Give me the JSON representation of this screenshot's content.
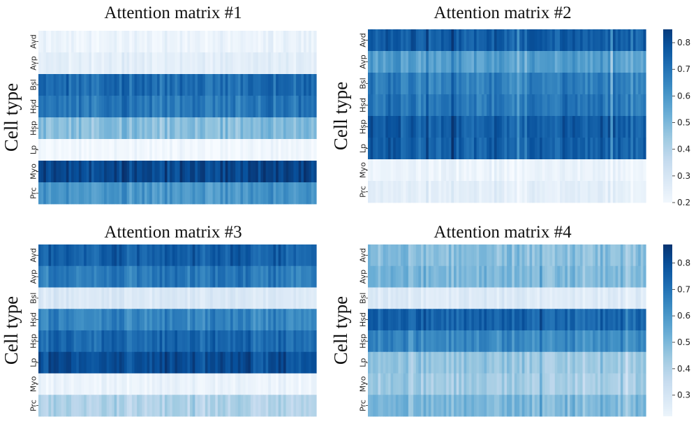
{
  "chart_data": [
    {
      "type": "heatmap",
      "title": "Attention matrix #1",
      "ylabel": "Cell type",
      "xlabel": "",
      "rows": [
        "Avd",
        "Avp",
        "Bsl",
        "Hsd",
        "Hsp",
        "Lp",
        "Myo",
        "Prc"
      ],
      "row_means": [
        0.22,
        0.25,
        0.72,
        0.69,
        0.48,
        0.2,
        0.82,
        0.6
      ],
      "colorbar": false
    },
    {
      "type": "heatmap",
      "title": "Attention matrix #2",
      "ylabel": "Cell type",
      "xlabel": "",
      "rows": [
        "Avd",
        "Avp",
        "Bsl",
        "Hsd",
        "Hsp",
        "Lp",
        "Myo",
        "Prc"
      ],
      "row_means": [
        0.76,
        0.58,
        0.67,
        0.69,
        0.76,
        0.75,
        0.22,
        0.25
      ],
      "colorbar": true,
      "colorbar_range": [
        0.2,
        0.85
      ],
      "colorbar_ticks": [
        "0.2",
        "0.3",
        "0.4",
        "0.5",
        "0.6",
        "0.7",
        "0.8"
      ]
    },
    {
      "type": "heatmap",
      "title": "Attention matrix #3",
      "ylabel": "Cell type",
      "xlabel": "",
      "rows": [
        "Avd",
        "Avp",
        "Bsl",
        "Hsd",
        "Hsp",
        "Lp",
        "Myo",
        "Prc"
      ],
      "row_means": [
        0.75,
        0.68,
        0.28,
        0.65,
        0.73,
        0.8,
        0.22,
        0.4
      ],
      "colorbar": false
    },
    {
      "type": "heatmap",
      "title": "Attention matrix #4",
      "ylabel": "Cell type",
      "xlabel": "",
      "rows": [
        "Avd",
        "Avp",
        "Bsl",
        "Hsd",
        "Hsp",
        "Lp",
        "Myo",
        "Prc"
      ],
      "row_means": [
        0.48,
        0.5,
        0.27,
        0.74,
        0.64,
        0.45,
        0.43,
        0.5
      ],
      "colorbar": true,
      "colorbar_range": [
        0.22,
        0.87
      ],
      "colorbar_ticks": [
        "0.3",
        "0.4",
        "0.5",
        "0.6",
        "0.7",
        "0.8"
      ]
    }
  ]
}
